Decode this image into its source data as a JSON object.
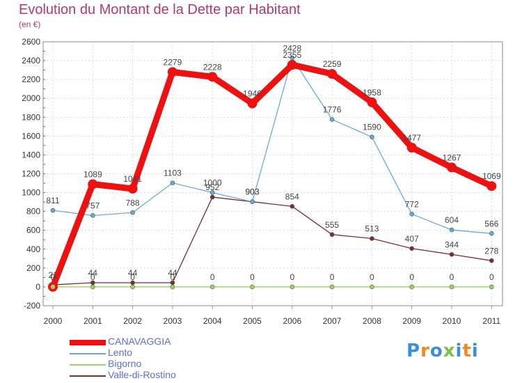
{
  "title": "Evolution du Montant de la Dette par Habitant",
  "subtitle": "(en €)",
  "brand": {
    "letters": [
      "P",
      "r",
      "o",
      "x",
      "i",
      "t",
      "i"
    ],
    "colors": [
      "#3a8fd8",
      "#f08a1c",
      "#3a8fd8",
      "#7cc242",
      "#3a8fd8",
      "#f08a1c",
      "#3a8fd8"
    ]
  },
  "chart_data": {
    "type": "line",
    "categories": [
      "2000",
      "2001",
      "2002",
      "2003",
      "2004",
      "2005",
      "2006",
      "2007",
      "2008",
      "2009",
      "2010",
      "2011"
    ],
    "ylim": [
      -200,
      2600
    ],
    "yticks": [
      -200,
      0,
      200,
      400,
      600,
      800,
      1000,
      1200,
      1400,
      1600,
      1800,
      2000,
      2200,
      2400,
      2600
    ],
    "grid": true,
    "legend_position": "bottom-left",
    "series": [
      {
        "name": "CANAVAGGIA",
        "color": "#ee1111",
        "values": [
          0,
          1089,
          1041,
          2279,
          2228,
          1946,
          2355,
          2259,
          1958,
          1477,
          1267,
          1069
        ],
        "labels": [
          "0",
          "1089",
          "1041",
          "2279",
          "2228",
          "1946",
          "2355",
          "2259",
          "1958",
          "1477",
          "1267",
          "1069"
        ]
      },
      {
        "name": "Lento",
        "color": "#6aa8d8",
        "values": [
          811,
          757,
          788,
          1103,
          1000,
          903,
          2428,
          1776,
          1590,
          772,
          604,
          566
        ],
        "labels": [
          "811",
          "757",
          "788",
          "1103",
          "1000",
          "903",
          "2428",
          "1776",
          "1590",
          "772",
          "604",
          "566"
        ]
      },
      {
        "name": "Bigorno",
        "color": "#99d45f",
        "values": [
          0,
          0,
          0,
          0,
          0,
          0,
          0,
          0,
          0,
          0,
          0,
          0
        ],
        "labels": [
          "0",
          "0",
          "0",
          "0",
          "0",
          "0",
          "0",
          "0",
          "0",
          "0",
          "0",
          "0"
        ]
      },
      {
        "name": "Valle-di-Rostino",
        "color": "#7a2e2e",
        "values": [
          21,
          44,
          44,
          44,
          952,
          903,
          854,
          555,
          513,
          407,
          344,
          278
        ],
        "labels": [
          "21",
          "44",
          "44",
          "44",
          "952",
          "903",
          "854",
          "555",
          "513",
          "407",
          "344",
          "278"
        ]
      }
    ]
  }
}
